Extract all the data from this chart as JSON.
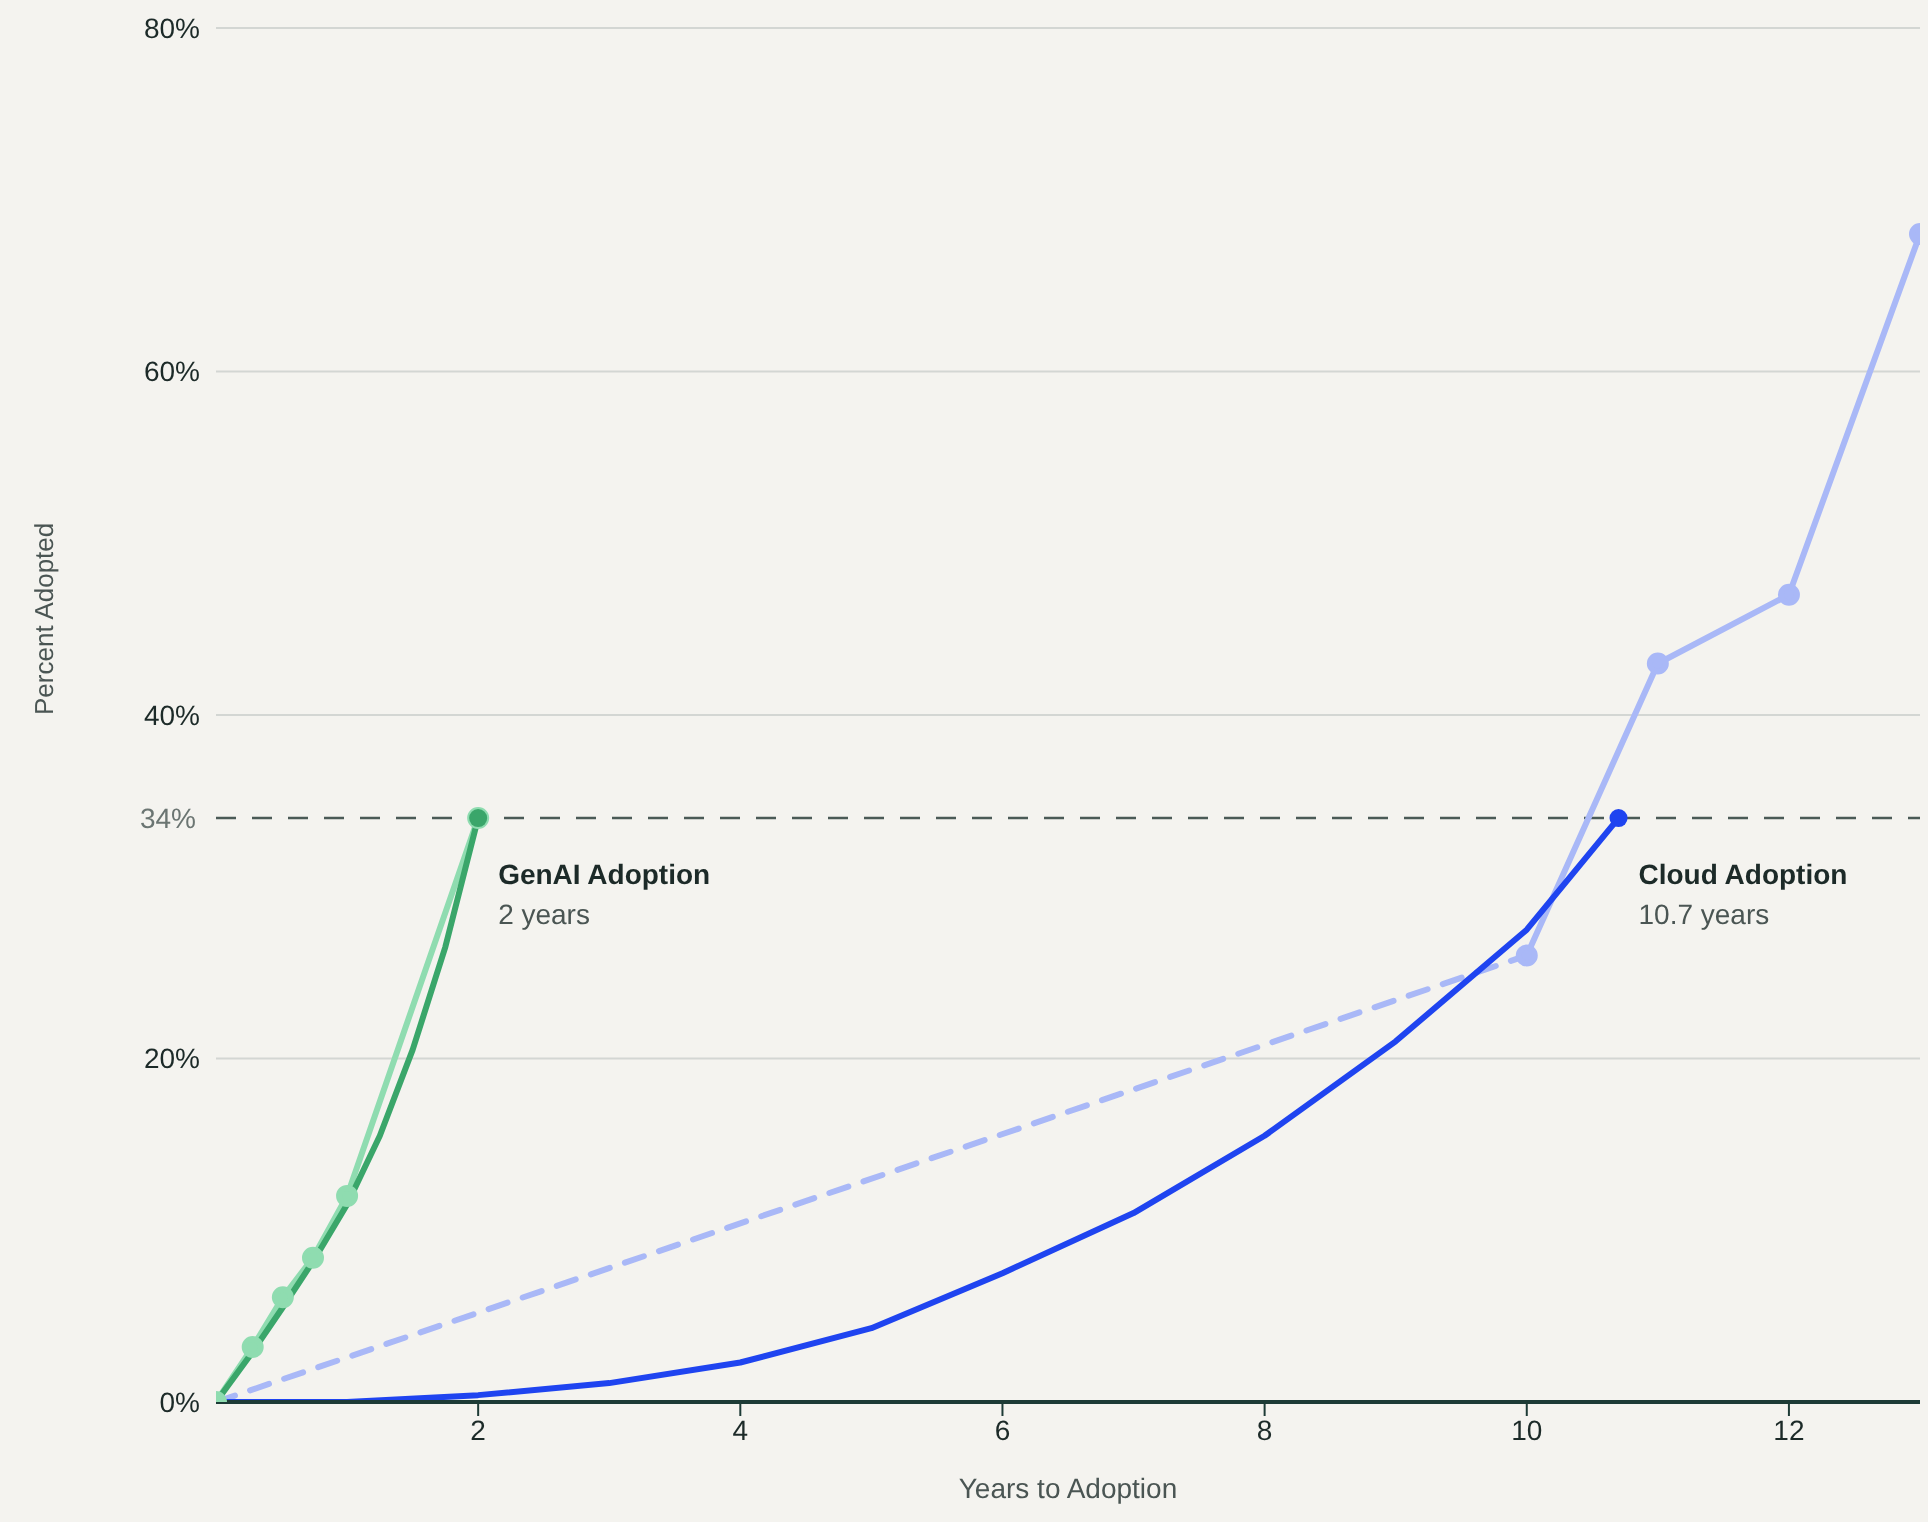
{
  "chart_data": {
    "type": "line",
    "xlabel": "Years to Adoption",
    "ylabel": "Percent Adopted",
    "xlim": [
      0,
      13
    ],
    "xticks": [
      2,
      4,
      6,
      8,
      10,
      12
    ],
    "ylim": [
      0,
      80
    ],
    "yticks": [
      {
        "value": 0,
        "label": "0%"
      },
      {
        "value": 20,
        "label": "20%"
      },
      {
        "value": 40,
        "label": "40%"
      },
      {
        "value": 60,
        "label": "60%"
      },
      {
        "value": 80,
        "label": "80%"
      }
    ],
    "grid": "y",
    "ref_lines": [
      {
        "axis": "y",
        "value": 34,
        "label": "34%",
        "color": "#4a5a56",
        "line_style": "dashed"
      }
    ],
    "annotations": [
      {
        "text": "GenAI Adoption\n2 years",
        "x": 2,
        "y": 34
      },
      {
        "text": "Cloud Adoption\n10.7 years",
        "x": 10.7,
        "y": 34
      }
    ],
    "series": [
      {
        "color": "#8fdcb0",
        "marker": "circle",
        "line_style": "solid",
        "x": [
          0,
          0.28,
          0.51,
          0.74,
          1,
          2
        ],
        "values": [
          0,
          3.2,
          6.1,
          8.4,
          12,
          34
        ]
      },
      {
        "color": "#a9b8f7",
        "line_style": "dashed",
        "x": [
          0,
          10
        ],
        "values": [
          0,
          26
        ]
      },
      {
        "color": "#a9b8f7",
        "marker": "circle",
        "line_style": "solid",
        "x": [
          10,
          11,
          12,
          13
        ],
        "values": [
          26,
          43,
          47,
          68
        ]
      },
      {
        "color": "#3aa66a",
        "marker": "none",
        "line_style": "solid",
        "x": [
          0,
          0.25,
          0.5,
          0.75,
          1,
          1.25,
          1.5,
          1.75,
          2
        ],
        "values": [
          0,
          2.6,
          5.4,
          8.3,
          11.5,
          15.5,
          20.5,
          26.5,
          34
        ]
      },
      {
        "color": "#1f44f0",
        "marker": "none",
        "line_style": "solid",
        "x": [
          0,
          1,
          2,
          3,
          4,
          5,
          6,
          7,
          8,
          9,
          10,
          10.7
        ],
        "values": [
          0,
          0,
          0.4,
          1.1,
          2.3,
          4.3,
          7.5,
          11,
          15.5,
          21,
          27.5,
          34
        ]
      },
      {
        "type": "scatter",
        "colors": [
          "#3aa66a",
          "#1f44f0"
        ],
        "x": [
          2,
          10.7
        ],
        "values": [
          34,
          34
        ]
      }
    ]
  }
}
